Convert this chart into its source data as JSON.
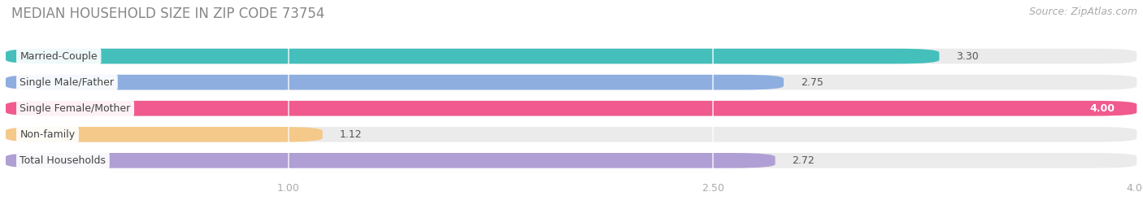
{
  "title": "MEDIAN HOUSEHOLD SIZE IN ZIP CODE 73754",
  "source": "Source: ZipAtlas.com",
  "categories": [
    "Married-Couple",
    "Single Male/Father",
    "Single Female/Mother",
    "Non-family",
    "Total Households"
  ],
  "values": [
    3.3,
    2.75,
    4.0,
    1.12,
    2.72
  ],
  "bar_colors": [
    "#44bfbc",
    "#8eaee0",
    "#f05a8e",
    "#f5c98a",
    "#b09fd4"
  ],
  "xlim_left": 0.0,
  "xlim_right": 4.0,
  "xticks": [
    1.0,
    2.5,
    4.0
  ],
  "background_color": "#ffffff",
  "bar_bg_color": "#ebebeb",
  "title_fontsize": 12,
  "source_fontsize": 9,
  "label_fontsize": 9,
  "value_fontsize": 9,
  "tick_fontsize": 9,
  "tick_color": "#aaaaaa",
  "label_text_color": "#444444",
  "value_text_color": "#555555",
  "title_color": "#888888",
  "source_color": "#aaaaaa"
}
